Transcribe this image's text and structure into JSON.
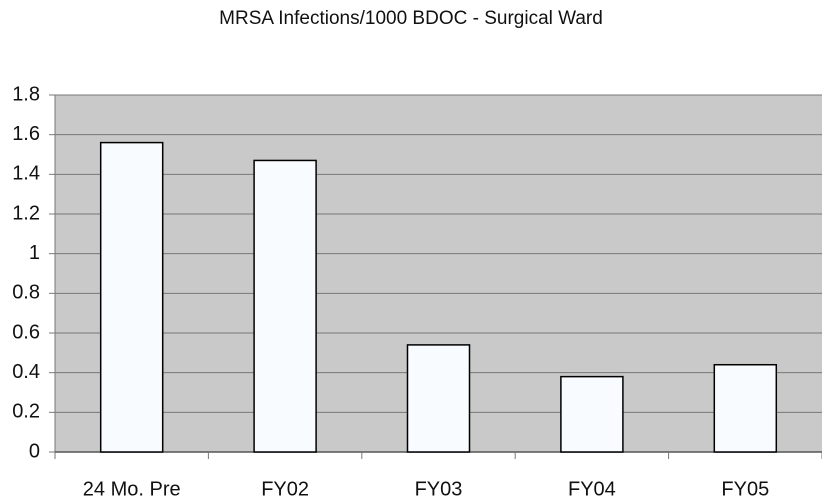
{
  "chart_data": {
    "type": "bar",
    "title": "MRSA Infections/1000 BDOC - Surgical Ward",
    "categories": [
      "24 Mo. Pre",
      "FY02",
      "FY03",
      "FY04",
      "FY05"
    ],
    "values": [
      1.56,
      1.47,
      0.54,
      0.38,
      0.44
    ],
    "color": "#f8fbff",
    "ylim": [
      0,
      1.8
    ],
    "yticks": [
      0,
      0.2,
      0.4,
      0.6,
      0.8,
      1,
      1.2,
      1.4,
      1.6,
      1.8
    ],
    "grid": true
  }
}
